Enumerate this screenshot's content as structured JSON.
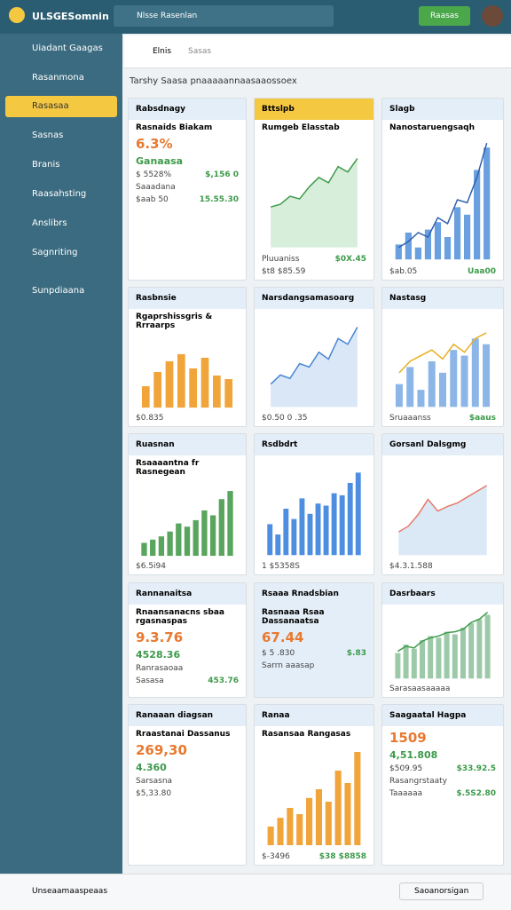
{
  "header": {
    "logo": "ULSGESomnin",
    "search": "Nlsse Rasenlan",
    "button": "Raasas"
  },
  "sidebar": {
    "items": [
      "Uiadant Gaagas",
      "Rasanmona",
      "Rasasaa",
      "Sasnas",
      "Branis",
      "Raasahsting",
      "Anslibrs",
      "Sagnriting",
      "Sunpdiaana"
    ],
    "active": 2
  },
  "subheader": {
    "crumbs": [
      "Elnis",
      "Sasas"
    ],
    "heading": "Tarshy Saasa pnaaaaannaasaaossoex"
  },
  "cards": [
    {
      "title": "Rabsdnagy",
      "subtitle": "Rasnaids Biakam",
      "value": "6.3%",
      "value2": "Ganaasa",
      "rows": [
        [
          "$ 5528%",
          "$,156 0"
        ],
        [
          "Saaadana",
          ""
        ],
        [
          "$aab 50",
          "15.55.30"
        ]
      ]
    },
    {
      "title": "Bttslpb",
      "subtitle": "Rumgeb Elasstab",
      "chart": {
        "kind": "area",
        "color": "#3d9a4a",
        "fill": "#d7eedb",
        "ylim": [
          0,
          80
        ],
        "values": [
          30,
          32,
          38,
          36,
          45,
          52,
          48,
          60,
          56,
          66
        ]
      },
      "rows": [
        [
          "Pluuaniss",
          "$0X.45"
        ],
        [
          "$t8 $85.59",
          ""
        ]
      ]
    },
    {
      "title": "Slagb",
      "subtitle": "Nanostaruengsaqh",
      "chart": {
        "kind": "bar",
        "color": "#6a9fe0",
        "ylim": [
          0,
          80
        ],
        "values": [
          10,
          18,
          8,
          20,
          25,
          15,
          35,
          30,
          60,
          75
        ],
        "line": {
          "color": "#2f5fae",
          "values": [
            8,
            12,
            18,
            15,
            28,
            24,
            40,
            38,
            55,
            78
          ]
        }
      },
      "rows": [
        [
          "$ab.05",
          "Uaa00"
        ]
      ]
    },
    {
      "title": "Rasbnsie",
      "subtitle": "Rgaprshissgris & Rrraarps",
      "chart": {
        "kind": "bar",
        "color": "#f0a43a",
        "ylim": [
          0,
          40
        ],
        "values": [
          12,
          20,
          26,
          30,
          22,
          28,
          18,
          16
        ]
      },
      "rows": [
        [
          "$0.835",
          ""
        ]
      ]
    },
    {
      "title": "Narsdangsamasoarg",
      "chart": {
        "kind": "area",
        "color": "#4a86d4",
        "fill": "#d9e7f7",
        "ylim": [
          0,
          80
        ],
        "values": [
          20,
          28,
          25,
          38,
          35,
          48,
          42,
          60,
          55,
          70
        ]
      },
      "rows": [
        [
          "$0.50 0 .35",
          ""
        ]
      ]
    },
    {
      "title": "Nastasg",
      "chart": {
        "kind": "bar",
        "color": "#8db6e8",
        "ylim": [
          0,
          80
        ],
        "values": [
          20,
          35,
          15,
          40,
          30,
          50,
          45,
          60,
          55
        ],
        "line": {
          "color": "#e6b020",
          "values": [
            30,
            40,
            45,
            50,
            42,
            55,
            48,
            60,
            65
          ]
        }
      },
      "rows": [
        [
          "Sruaaanss",
          "$aaus"
        ]
      ]
    },
    {
      "title": "Ruasnan",
      "subtitle": "Rsaaaantna fr Rasnegean",
      "chart": {
        "kind": "bar",
        "color": "#5aa55e",
        "ylim": [
          0,
          45
        ],
        "values": [
          8,
          10,
          12,
          15,
          20,
          18,
          22,
          28,
          25,
          35,
          40
        ]
      },
      "rows": [
        [
          "$6.5i94",
          ""
        ]
      ]
    },
    {
      "title": "Rsdbdrt",
      "chart": {
        "kind": "bar",
        "color": "#4d8ee0",
        "ylim": [
          0,
          90
        ],
        "values": [
          30,
          20,
          45,
          35,
          55,
          40,
          50,
          48,
          60,
          58,
          70,
          80
        ]
      },
      "rows": [
        [
          "1 $5358S",
          ""
        ]
      ]
    },
    {
      "title": "Gorsanl Dalsgmg",
      "chart": {
        "kind": "area",
        "color": "#e57b6a",
        "fill": "#dbe8f6",
        "ylim": [
          0,
          80
        ],
        "values": [
          20,
          25,
          35,
          48,
          38,
          42,
          45,
          50,
          55,
          60
        ]
      },
      "rows": [
        [
          "$4.3.1.588",
          ""
        ]
      ]
    },
    {
      "title": "Rannanaitsa",
      "subtitle": "Rnaansanacns sbaa rgasnaspas",
      "value": "9.3.76",
      "value2": "4528.36",
      "rows": [
        [
          "Ranrasaoaa",
          ""
        ],
        [
          "Sasasa",
          "453.76"
        ]
      ]
    },
    {
      "title": "Rsaaa Rnadsbian",
      "subtitle": "Rasnaaa Rsaa Dassanaatsa",
      "value": "67.44",
      "rows": [
        [
          "$ 5 .830",
          "$.83"
        ],
        [
          "Sarrn aaasap",
          ""
        ]
      ]
    },
    {
      "title": "Dasrbaars",
      "chart": {
        "kind": "bar",
        "color": "#9ccaa8",
        "ylim": [
          0,
          80
        ],
        "values": [
          30,
          40,
          35,
          45,
          50,
          48,
          55,
          52,
          60,
          65,
          70,
          75
        ],
        "line": {
          "color": "#3d9a4a",
          "values": [
            32,
            38,
            36,
            44,
            48,
            50,
            54,
            55,
            58,
            66,
            70,
            78
          ]
        }
      },
      "rows": [
        [
          "Sarasaasaaaaa",
          ""
        ]
      ]
    },
    {
      "title": "Ranaaan diagsan",
      "subtitle": "Rraastanai Dassanus",
      "value": "269,30",
      "value2": "4.360",
      "rows": [
        [
          "Sarsasna",
          ""
        ],
        [
          "$5,33.80",
          ""
        ]
      ]
    },
    {
      "title": "Ranaa",
      "subtitle": "Rasansaa Rangasas",
      "chart": {
        "kind": "bar",
        "color": "#f0a43a",
        "ylim": [
          0,
          80
        ],
        "values": [
          15,
          22,
          30,
          25,
          38,
          45,
          35,
          60,
          50,
          75
        ]
      },
      "rows": [
        [
          "$-3496",
          "$38 $8858"
        ]
      ]
    },
    {
      "title": "Saagaatal Hagpa",
      "value": "1509",
      "value2": "4,51.808",
      "rows": [
        [
          "$509.95",
          "$33.92.5"
        ],
        [
          "Rasangrstaaty",
          ""
        ],
        [
          "Taaaaaa",
          "$.5S2.80"
        ]
      ]
    }
  ],
  "footer": {
    "left": "Unseaamaaspeaas",
    "right": "Saoanorsigan"
  }
}
